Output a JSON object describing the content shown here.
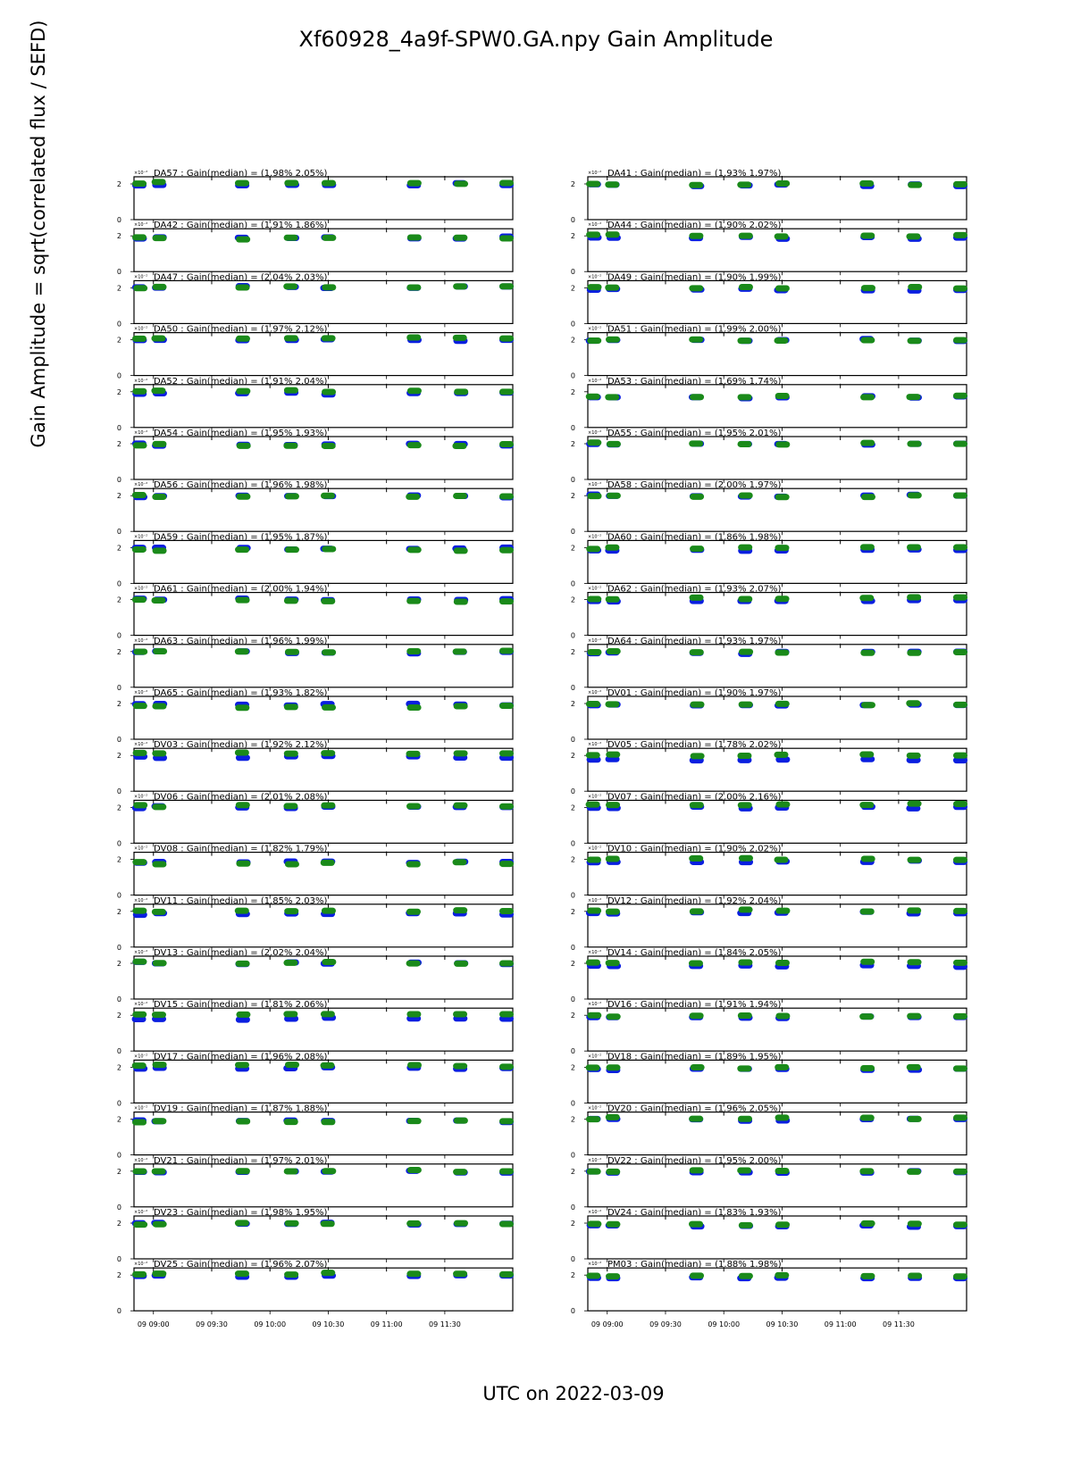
{
  "figure": {
    "title": "Xf60928_4a9f-SPW0.GA.npy Gain Amplitude",
    "xlabel": "UTC on 2022-03-09",
    "ylabel": "Gain Amplitude = sqrt(correlated flux / SEFD)"
  },
  "chart_data": {
    "type": "scatter",
    "title": "Xf60928_4a9f-SPW0.GA.npy Gain Amplitude",
    "xlabel": "UTC on 2022-03-09",
    "ylabel": "Gain Amplitude = sqrt(correlated flux / SEFD)",
    "x_range": [
      "08:50",
      "12:05"
    ],
    "x_ticks": [
      "09 09:00",
      "09 09:30",
      "09 10:00",
      "09 10:30",
      "09 11:00",
      "09 11:30"
    ],
    "ylim": [
      0,
      2.4
    ],
    "y_ticks": [
      "0",
      "2"
    ],
    "y_scale_note": "×10⁻²",
    "scan_times": [
      "08:53",
      "09:03",
      "09:46",
      "10:11",
      "10:30",
      "11:14",
      "11:38",
      "12:03"
    ],
    "series_colors": {
      "pol_1": "#0a1fe0",
      "pol_2": "#1a8a1a"
    },
    "grid": false,
    "panel_rows": 22,
    "panel_columns": 2,
    "panels": [
      {
        "label": "DA57 : Gain(median) = (1.98% 2.05%)",
        "median": [
          1.98,
          2.05
        ]
      },
      {
        "label": "DA41 : Gain(median) = (1.93% 1.97%)",
        "median": [
          1.93,
          1.97
        ]
      },
      {
        "label": "DA42 : Gain(median) = (1.91% 1.86%)",
        "median": [
          1.91,
          1.86
        ]
      },
      {
        "label": "DA44 : Gain(median) = (1.90% 2.02%)",
        "median": [
          1.9,
          2.02
        ]
      },
      {
        "label": "DA47 : Gain(median) = (2.04% 2.03%)",
        "median": [
          2.04,
          2.03
        ]
      },
      {
        "label": "DA49 : Gain(median) = (1.90% 1.99%)",
        "median": [
          1.9,
          1.99
        ]
      },
      {
        "label": "DA50 : Gain(median) = (1.97% 2.12%)",
        "median": [
          1.97,
          2.12
        ]
      },
      {
        "label": "DA51 : Gain(median) = (1.99% 2.00%)",
        "median": [
          1.99,
          2.0
        ]
      },
      {
        "label": "DA52 : Gain(median) = (1.91% 2.04%)",
        "median": [
          1.91,
          2.04
        ]
      },
      {
        "label": "DA53 : Gain(median) = (1.69% 1.74%)",
        "median": [
          1.69,
          1.74
        ]
      },
      {
        "label": "DA54 : Gain(median) = (1.95% 1.93%)",
        "median": [
          1.95,
          1.93
        ]
      },
      {
        "label": "DA55 : Gain(median) = (1.95% 2.01%)",
        "median": [
          1.95,
          2.01
        ]
      },
      {
        "label": "DA56 : Gain(median) = (1.96% 1.98%)",
        "median": [
          1.96,
          1.98
        ]
      },
      {
        "label": "DA58 : Gain(median) = (2.00% 1.97%)",
        "median": [
          2.0,
          1.97
        ]
      },
      {
        "label": "DA59 : Gain(median) = (1.95% 1.87%)",
        "median": [
          1.95,
          1.87
        ]
      },
      {
        "label": "DA60 : Gain(median) = (1.86% 1.98%)",
        "median": [
          1.86,
          1.98
        ]
      },
      {
        "label": "DA61 : Gain(median) = (2.00% 1.94%)",
        "median": [
          2.0,
          1.94
        ]
      },
      {
        "label": "DA62 : Gain(median) = (1.93% 2.07%)",
        "median": [
          1.93,
          2.07
        ]
      },
      {
        "label": "DA63 : Gain(median) = (1.96% 1.99%)",
        "median": [
          1.96,
          1.99
        ]
      },
      {
        "label": "DA64 : Gain(median) = (1.93% 1.97%)",
        "median": [
          1.93,
          1.97
        ]
      },
      {
        "label": "DA65 : Gain(median) = (1.93% 1.82%)",
        "median": [
          1.93,
          1.82
        ]
      },
      {
        "label": "DV01 : Gain(median) = (1.90% 1.97%)",
        "median": [
          1.9,
          1.97
        ]
      },
      {
        "label": "DV03 : Gain(median) = (1.92% 2.12%)",
        "median": [
          1.92,
          2.12
        ]
      },
      {
        "label": "DV05 : Gain(median) = (1.78% 2.02%)",
        "median": [
          1.78,
          2.02
        ]
      },
      {
        "label": "DV06 : Gain(median) = (2.01% 2.08%)",
        "median": [
          2.01,
          2.08
        ]
      },
      {
        "label": "DV07 : Gain(median) = (2.00% 2.16%)",
        "median": [
          2.0,
          2.16
        ]
      },
      {
        "label": "DV08 : Gain(median) = (1.82% 1.79%)",
        "median": [
          1.82,
          1.79
        ]
      },
      {
        "label": "DV10 : Gain(median) = (1.90% 2.02%)",
        "median": [
          1.9,
          2.02
        ]
      },
      {
        "label": "DV11 : Gain(median) = (1.85% 2.03%)",
        "median": [
          1.85,
          2.03
        ]
      },
      {
        "label": "DV12 : Gain(median) = (1.92% 2.04%)",
        "median": [
          1.92,
          2.04
        ]
      },
      {
        "label": "DV13 : Gain(median) = (2.02% 2.04%)",
        "median": [
          2.02,
          2.04
        ]
      },
      {
        "label": "DV14 : Gain(median) = (1.84% 2.05%)",
        "median": [
          1.84,
          2.05
        ]
      },
      {
        "label": "DV15 : Gain(median) = (1.81% 2.06%)",
        "median": [
          1.81,
          2.06
        ]
      },
      {
        "label": "DV16 : Gain(median) = (1.91% 1.94%)",
        "median": [
          1.91,
          1.94
        ]
      },
      {
        "label": "DV17 : Gain(median) = (1.96% 2.08%)",
        "median": [
          1.96,
          2.08
        ]
      },
      {
        "label": "DV18 : Gain(median) = (1.89% 1.95%)",
        "median": [
          1.89,
          1.95
        ]
      },
      {
        "label": "DV19 : Gain(median) = (1.87% 1.88%)",
        "median": [
          1.87,
          1.88
        ]
      },
      {
        "label": "DV20 : Gain(median) = (1.96% 2.05%)",
        "median": [
          1.96,
          2.05
        ]
      },
      {
        "label": "DV21 : Gain(median) = (1.97% 2.01%)",
        "median": [
          1.97,
          2.01
        ]
      },
      {
        "label": "DV22 : Gain(median) = (1.95% 2.00%)",
        "median": [
          1.95,
          2.0
        ]
      },
      {
        "label": "DV23 : Gain(median) = (1.98% 1.95%)",
        "median": [
          1.98,
          1.95
        ]
      },
      {
        "label": "DV24 : Gain(median) = (1.83% 1.93%)",
        "median": [
          1.83,
          1.93
        ]
      },
      {
        "label": "DV25 : Gain(median) = (1.96% 2.07%)",
        "median": [
          1.96,
          2.07
        ]
      },
      {
        "label": "PM03 : Gain(median) = (1.88% 1.98%)",
        "median": [
          1.88,
          1.98
        ]
      }
    ]
  }
}
